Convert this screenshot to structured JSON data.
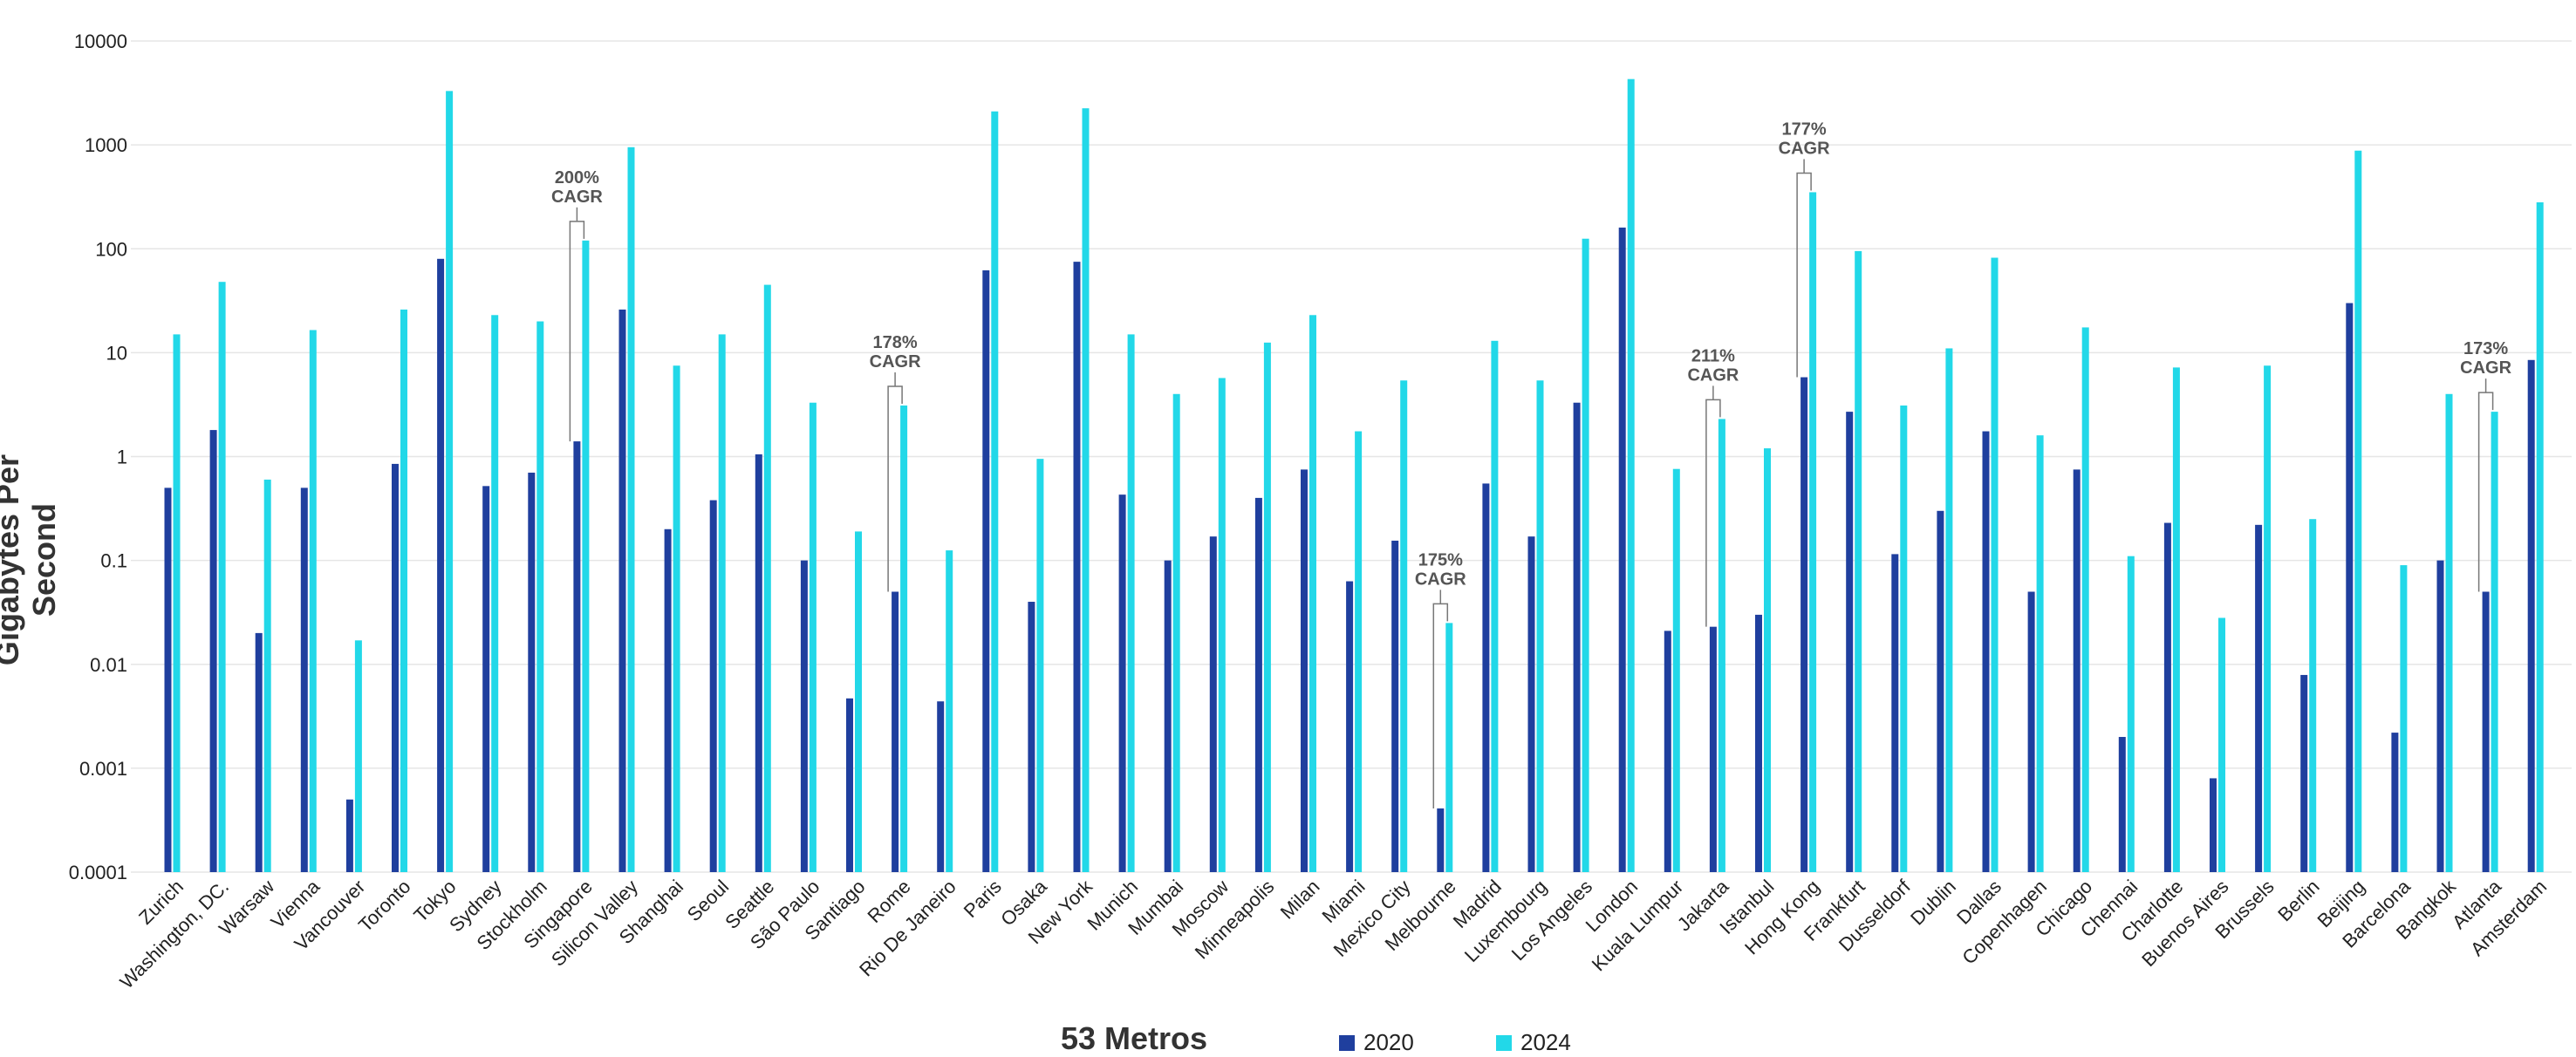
{
  "chart_data": {
    "type": "bar",
    "xlabel": "53 Metros",
    "ylabel": "Gigabytes Per Second",
    "yscale": "log",
    "ylim": [
      0.0001,
      10000
    ],
    "yticks": [
      "0.0001",
      "0.001",
      "0.01",
      "0.1",
      "1",
      "10",
      "100",
      "1000",
      "10000"
    ],
    "grid": true,
    "legend_position": "bottom",
    "categories": [
      "Zurich",
      "Washington, DC.",
      "Warsaw",
      "Vienna",
      "Vancouver",
      "Toronto",
      "Tokyo",
      "Sydney",
      "Stockholm",
      "Singapore",
      "Silicon Valley",
      "Shanghai",
      "Seoul",
      "Seattle",
      "São Paulo",
      "Santiago",
      "Rome",
      "Rio De Janeiro",
      "Paris",
      "Osaka",
      "New York",
      "Munich",
      "Mumbai",
      "Moscow",
      "Minneapolis",
      "Milan",
      "Miami",
      "Mexico City",
      "Melbourne",
      "Madrid",
      "Luxembourg",
      "Los Angeles",
      "London",
      "Kuala Lumpur",
      "Jakarta",
      "Istanbul",
      "Hong Kong",
      "Frankfurt",
      "Dusseldorf",
      "Dublin",
      "Dallas",
      "Copenhagen",
      "Chicago",
      "Chennai",
      "Charlotte",
      "Buenos Aires",
      "Brussels",
      "Berlin",
      "Beijing",
      "Barcelona",
      "Bangkok",
      "Atlanta",
      "Amsterdam"
    ],
    "series": [
      {
        "name": "2020",
        "color": "#1f3f9e",
        "values": [
          0.5,
          1.8,
          0.02,
          0.5,
          0.0005,
          0.85,
          80,
          0.52,
          0.7,
          1.4,
          26,
          0.2,
          0.38,
          1.05,
          0.1,
          0.0047,
          0.05,
          0.0044,
          62,
          0.04,
          75,
          0.43,
          0.1,
          0.17,
          0.4,
          0.75,
          0.063,
          0.155,
          0.00041,
          0.55,
          0.17,
          3.3,
          160,
          0.021,
          0.023,
          0.03,
          5.8,
          2.7,
          0.115,
          0.3,
          1.75,
          0.05,
          0.75,
          0.002,
          0.23,
          0.0008,
          0.22,
          0.0079,
          30,
          0.0022,
          0.1,
          0.05,
          8.5
        ]
      },
      {
        "name": "2024",
        "color": "#22d8e8",
        "values": [
          15,
          48,
          0.6,
          16.5,
          0.017,
          26,
          3300,
          23,
          20,
          120,
          950,
          7.5,
          15,
          45,
          3.3,
          0.19,
          3.1,
          0.125,
          2100,
          0.95,
          2250,
          15,
          4,
          5.7,
          12.5,
          23,
          1.75,
          5.4,
          0.025,
          13,
          5.4,
          125,
          4300,
          0.76,
          2.3,
          1.2,
          350,
          95,
          3.1,
          11,
          82,
          1.6,
          17.5,
          0.11,
          7.2,
          0.028,
          7.5,
          0.25,
          880,
          0.09,
          4,
          2.7,
          280
        ]
      }
    ],
    "annotations": [
      {
        "category": "Singapore",
        "line1": "200%",
        "line2": "CAGR"
      },
      {
        "category": "Rome",
        "line1": "178%",
        "line2": "CAGR"
      },
      {
        "category": "Melbourne",
        "line1": "175%",
        "line2": "CAGR"
      },
      {
        "category": "Jakarta",
        "line1": "211%",
        "line2": "CAGR"
      },
      {
        "category": "Hong Kong",
        "line1": "177%",
        "line2": "CAGR"
      },
      {
        "category": "Atlanta",
        "line1": "173%",
        "line2": "CAGR"
      }
    ]
  }
}
